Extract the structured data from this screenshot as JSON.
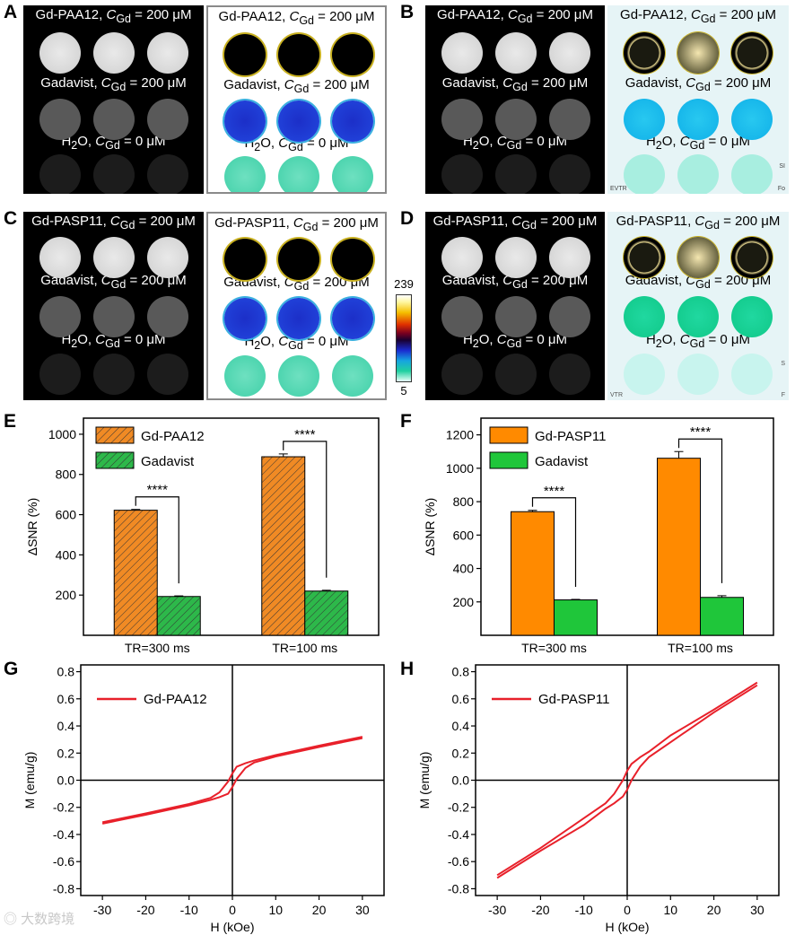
{
  "panels": {
    "A": "A",
    "B": "B",
    "C": "C",
    "D": "D",
    "E": "E",
    "F": "F",
    "G": "G",
    "H": "H"
  },
  "mri": {
    "A_bw": {
      "row1": "Gd-PAA12, C<sub>Gd</sub> = 200 μM",
      "row2": "Gadavist, C<sub>Gd</sub> = 200 μM",
      "row3": "H<sub>2</sub>O, C<sub>Gd</sub> = 0 μM"
    },
    "A_map": {
      "row1": "Gd-PAA12, C<sub>Gd</sub> = 200 μM",
      "row2": "Gadavist, C<sub>Gd</sub> = 200 μM",
      "row3": "H<sub>2</sub>O, C<sub>Gd</sub> = 0 μM"
    },
    "B_bw": {
      "row1": "Gd-PAA12, C<sub>Gd</sub> = 200 μM",
      "row2": "Gadavist, C<sub>Gd</sub> = 200 μM",
      "row3": "H<sub>2</sub>O, C<sub>Gd</sub> = 0 μM"
    },
    "B_map": {
      "row1": "Gd-PAA12, C<sub>Gd</sub> = 200 μM",
      "row2": "Gadavist, C<sub>Gd</sub> = 200 μM",
      "row3": "H<sub>2</sub>O, C<sub>Gd</sub> = 0 μM",
      "corner_bl": "EVTR",
      "corner_tr": "SI",
      "corner_br": "Fo"
    },
    "C_bw": {
      "row1": "Gd-PASP11, C<sub>Gd</sub> = 200 μM",
      "row2": "Gadavist, C<sub>Gd</sub> = 200 μM",
      "row3": "H<sub>2</sub>O, C<sub>Gd</sub> = 0 μM"
    },
    "C_map": {
      "row1": "Gd-PASP11, C<sub>Gd</sub> = 200 μM",
      "row2": "Gadavist, C<sub>Gd</sub> = 200 μM",
      "row3": "H<sub>2</sub>O, C<sub>Gd</sub> = 0 μM"
    },
    "D_bw": {
      "row1": "Gd-PASP11, C<sub>Gd</sub> = 200 μM",
      "row2": "Gadavist, C<sub>Gd</sub> = 200 μM",
      "row3": "H<sub>2</sub>O, C<sub>Gd</sub> = 0 μM"
    },
    "D_map": {
      "row1": "Gd-PASP11, C<sub>Gd</sub> = 200 μM",
      "row2": "Gadavist, C<sub>Gd</sub> = 200 μM",
      "row3": "H<sub>2</sub>O, C<sub>Gd</sub> = 0 μM",
      "corner_bl": "VTR",
      "corner_tr": "S",
      "corner_br": "F"
    }
  },
  "colorbar": {
    "max": "239",
    "min": "5"
  },
  "watermark": "大数跨境",
  "chart_data": [
    {
      "id": "E",
      "type": "bar",
      "categories": [
        "TR=300 ms",
        "TR=100 ms"
      ],
      "series": [
        {
          "name": "Gd-PAA12",
          "values": [
            622,
            888
          ],
          "errors": [
            4,
            14
          ],
          "color": "#f08a24",
          "hatch": true
        },
        {
          "name": "Gadavist",
          "values": [
            193,
            220
          ],
          "errors": [
            3,
            4
          ],
          "color": "#2db84a",
          "hatch": true
        }
      ],
      "ylabel": "ΔSNR (%)",
      "ylim": [
        0,
        1080
      ],
      "yticks": [
        200,
        400,
        600,
        800,
        1000
      ],
      "significance": [
        "****",
        "****"
      ],
      "legend": "top-left"
    },
    {
      "id": "F",
      "type": "bar",
      "categories": [
        "TR=300 ms",
        "TR=100 ms"
      ],
      "series": [
        {
          "name": "Gd-PASP11",
          "values": [
            740,
            1060
          ],
          "errors": [
            8,
            40
          ],
          "color": "#ff8a00",
          "hatch": false
        },
        {
          "name": "Gadavist",
          "values": [
            212,
            227
          ],
          "errors": [
            3,
            10
          ],
          "color": "#1fc63a",
          "hatch": false
        }
      ],
      "ylabel": "ΔSNR (%)",
      "ylim": [
        0,
        1300
      ],
      "yticks": [
        200,
        400,
        600,
        800,
        1000,
        1200
      ],
      "significance": [
        "****",
        "****"
      ],
      "legend": "top-left"
    },
    {
      "id": "G",
      "type": "line",
      "series": [
        {
          "name": "Gd-PAA12",
          "color": "#e8202a",
          "x": [
            -30,
            -20,
            -10,
            -5,
            -3,
            -1,
            0,
            1,
            3,
            5,
            10,
            20,
            30
          ],
          "y_upper": [
            -0.31,
            -0.245,
            -0.175,
            -0.13,
            -0.09,
            -0.01,
            0.05,
            0.1,
            0.125,
            0.145,
            0.185,
            0.255,
            0.32
          ],
          "y_lower": [
            -0.32,
            -0.255,
            -0.185,
            -0.145,
            -0.125,
            -0.1,
            -0.05,
            0.01,
            0.09,
            0.13,
            0.175,
            0.245,
            0.31
          ]
        }
      ],
      "xlabel": "H (kOe)",
      "ylabel": "M (emu/g)",
      "xlim": [
        -35,
        35
      ],
      "ylim": [
        -0.85,
        0.85
      ],
      "xticks": [
        -30,
        -20,
        -10,
        0,
        10,
        20,
        30
      ],
      "yticks": [
        -0.8,
        -0.6,
        -0.4,
        -0.2,
        0.0,
        0.2,
        0.4,
        0.6,
        0.8
      ],
      "legend": "top-left"
    },
    {
      "id": "H",
      "type": "line",
      "series": [
        {
          "name": "Gd-PASP11",
          "color": "#e8202a",
          "x": [
            -30,
            -20,
            -10,
            -5,
            -3,
            -1,
            0,
            1,
            3,
            5,
            10,
            20,
            30
          ],
          "y_upper": [
            -0.7,
            -0.5,
            -0.28,
            -0.17,
            -0.1,
            0.0,
            0.07,
            0.12,
            0.17,
            0.21,
            0.33,
            0.52,
            0.72
          ],
          "y_lower": [
            -0.72,
            -0.52,
            -0.33,
            -0.21,
            -0.17,
            -0.12,
            -0.07,
            0.0,
            0.1,
            0.17,
            0.28,
            0.5,
            0.7
          ]
        }
      ],
      "xlabel": "H (kOe)",
      "ylabel": "M (emu/g)",
      "xlim": [
        -35,
        35
      ],
      "ylim": [
        -0.85,
        0.85
      ],
      "xticks": [
        -30,
        -20,
        -10,
        0,
        10,
        20,
        30
      ],
      "yticks": [
        -0.8,
        -0.6,
        -0.4,
        -0.2,
        0.0,
        0.2,
        0.4,
        0.6,
        0.8
      ],
      "legend": "top-left"
    }
  ]
}
